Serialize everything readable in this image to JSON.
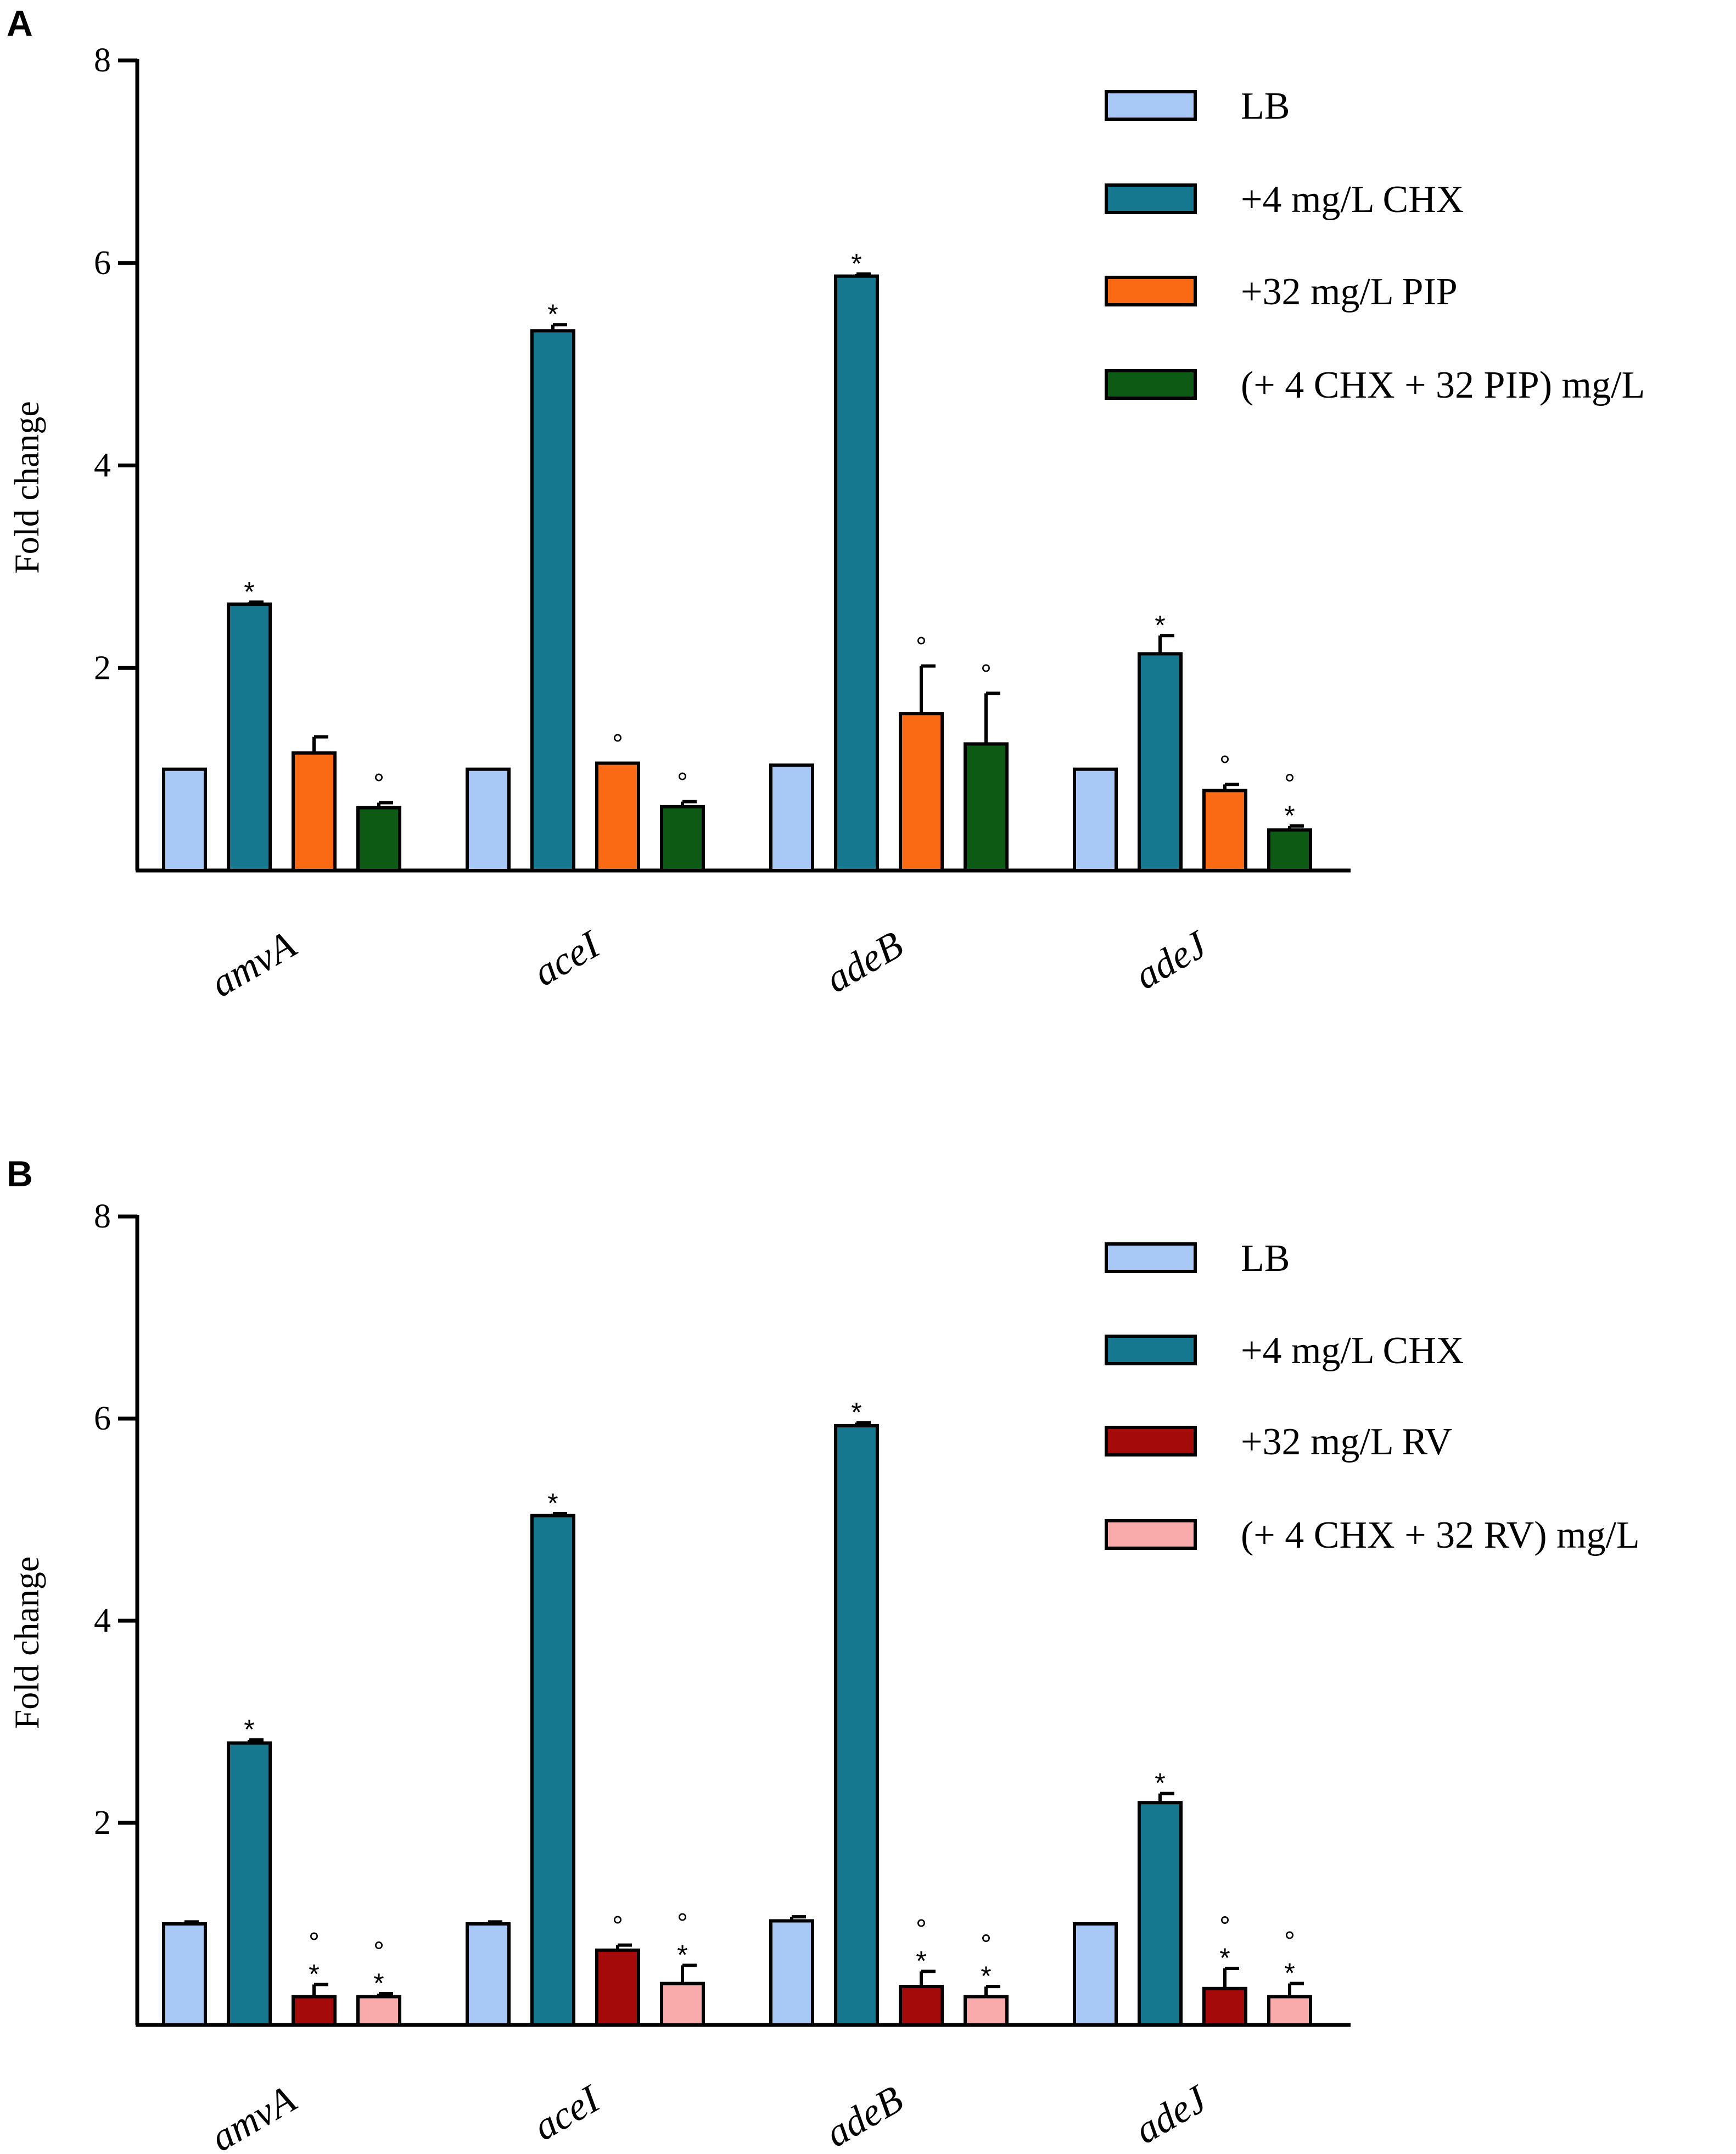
{
  "chart_data": [
    {
      "type": "bar",
      "panel": "A",
      "ylabel": "Fold change",
      "xlabel": "",
      "ylim": [
        0,
        8
      ],
      "yticks": [
        2,
        4,
        6,
        8
      ],
      "categories": [
        "amvA",
        "aceI",
        "adeB",
        "adeJ"
      ],
      "series": [
        {
          "name": "LB",
          "color": "#a8c8f5",
          "values": [
            1.0,
            1.0,
            1.04,
            1.0
          ],
          "errors": [
            0,
            0,
            0,
            0
          ],
          "marks": [
            "",
            "",
            "",
            ""
          ]
        },
        {
          "name": "+4 mg/L CHX",
          "color": "#16788f",
          "values": [
            2.63,
            5.33,
            5.87,
            2.14
          ],
          "errors": [
            0.02,
            0.06,
            0.02,
            0.18
          ],
          "marks": [
            "*",
            "*",
            "*",
            "*"
          ]
        },
        {
          "name": "+32 mg/L PIP",
          "color": "#fa6a14",
          "values": [
            1.16,
            1.06,
            1.55,
            0.79
          ],
          "errors": [
            0.16,
            0,
            0.47,
            0.06
          ],
          "marks": [
            "",
            "°",
            "°",
            "°"
          ]
        },
        {
          "name": "(+ 4 CHX + 32 PIP) mg/L",
          "color": "#0c5a14",
          "values": [
            0.62,
            0.63,
            1.25,
            0.4
          ],
          "errors": [
            0.05,
            0.05,
            0.5,
            0.04
          ],
          "marks": [
            "°",
            "°",
            "°",
            "°*"
          ]
        }
      ]
    },
    {
      "type": "bar",
      "panel": "B",
      "ylabel": "Fold change",
      "xlabel": "",
      "ylim": [
        0,
        8
      ],
      "yticks": [
        2,
        4,
        6,
        8
      ],
      "categories": [
        "amvA",
        "aceI",
        "adeB",
        "adeJ"
      ],
      "series": [
        {
          "name": "LB",
          "color": "#a8c8f5",
          "values": [
            1.0,
            1.0,
            1.03,
            1.0
          ],
          "errors": [
            0.02,
            0.02,
            0.04,
            0
          ],
          "marks": [
            "",
            "",
            "",
            ""
          ]
        },
        {
          "name": "+4 mg/L CHX",
          "color": "#16788f",
          "values": [
            2.79,
            5.04,
            5.93,
            2.2
          ],
          "errors": [
            0.03,
            0.02,
            0.03,
            0.09
          ],
          "marks": [
            "*",
            "*",
            "*",
            "*"
          ]
        },
        {
          "name": "+32 mg/L RV",
          "color": "#a50a0a",
          "values": [
            0.28,
            0.74,
            0.38,
            0.36
          ],
          "errors": [
            0.12,
            0.05,
            0.15,
            0.2
          ],
          "marks": [
            "°*",
            "°",
            "°*",
            "°*"
          ]
        },
        {
          "name": "(+ 4 CHX + 32 RV) mg/L",
          "color": "#f9abab",
          "values": [
            0.28,
            0.41,
            0.28,
            0.28
          ],
          "errors": [
            0.03,
            0.18,
            0.1,
            0.13
          ],
          "marks": [
            "°*",
            "°*",
            "°*",
            "°*"
          ]
        }
      ]
    }
  ]
}
